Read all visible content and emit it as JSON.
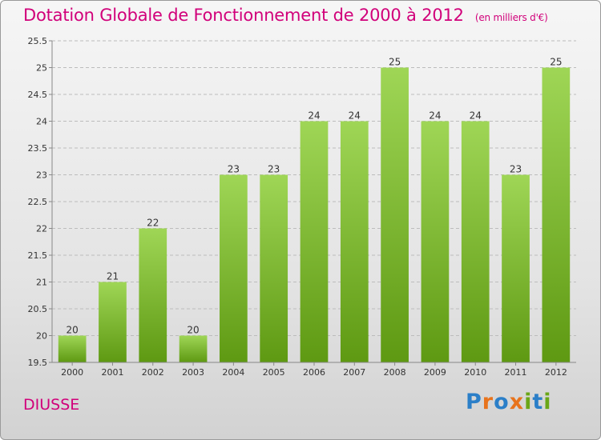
{
  "title": "Dotation Globale de Fonctionnement de 2000 à 2012",
  "unit": "(en milliers d'€)",
  "commune": "DIUSSE",
  "logo": {
    "text": "Proxiti",
    "letter_colors": [
      "#2b7fc8",
      "#e8731c",
      "#2b7fc8",
      "#e8731c",
      "#6aa617",
      "#2b7fc8",
      "#6aa617"
    ]
  },
  "colors": {
    "title": "#d1007a",
    "bar_top": "#9fd656",
    "bar_bottom": "#5e9912",
    "grid": "#bcbcbc"
  },
  "chart_data": {
    "type": "bar",
    "title": "Dotation Globale de Fonctionnement de 2000 à 2012",
    "categories": [
      "2000",
      "2001",
      "2002",
      "2003",
      "2004",
      "2005",
      "2006",
      "2007",
      "2008",
      "2009",
      "2010",
      "2011",
      "2012"
    ],
    "values": [
      20,
      21,
      22,
      20,
      23,
      23,
      24,
      24,
      25,
      24,
      24,
      23,
      25
    ],
    "ylim": [
      19.5,
      25.5
    ],
    "yticks": [
      19.5,
      20,
      20.5,
      21,
      21.5,
      22,
      22.5,
      23,
      23.5,
      24,
      24.5,
      25,
      25.5
    ],
    "ytick_labels": [
      "19.5",
      "20",
      "20.5",
      "21",
      "21.5",
      "22",
      "22.5",
      "23",
      "23.5",
      "24",
      "24.5",
      "25",
      "25.5"
    ],
    "grid": true,
    "data_labels": true
  }
}
